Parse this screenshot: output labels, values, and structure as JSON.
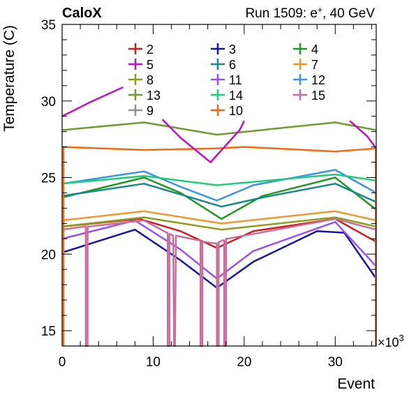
{
  "header": {
    "left_label": "CaloX",
    "right_label_prefix": "Run 1509: e",
    "right_label_sup": "+",
    "right_label_suffix": ", 40 GeV"
  },
  "chart_data": {
    "type": "line",
    "xlabel": "Event",
    "ylabel": "Temperature (C)",
    "x_multiplier_label": "×10",
    "x_multiplier_exp": "3",
    "xlim": [
      0,
      34.5
    ],
    "ylim": [
      14,
      35
    ],
    "x_ticks": [
      0,
      10,
      20,
      30
    ],
    "y_ticks": [
      15,
      20,
      25,
      30,
      35
    ],
    "legend_placement": "top",
    "series": [
      {
        "name": "2",
        "color": "#cc1f1f",
        "x": [
          0,
          8.5,
          13,
          17,
          21,
          30,
          34.5
        ],
        "y": [
          21.8,
          22.3,
          21.5,
          20.4,
          21.5,
          22.3,
          20.8
        ]
      },
      {
        "name": "3",
        "color": "#1414a8",
        "x": [
          0,
          8,
          13,
          17,
          21,
          28,
          31,
          34.5
        ],
        "y": [
          20.1,
          21.6,
          19.6,
          17.8,
          19.5,
          21.5,
          21.4,
          18.4
        ]
      },
      {
        "name": "4",
        "color": "#1e9a1e",
        "x": [
          0,
          9,
          13,
          17.5,
          22,
          30,
          34.5
        ],
        "y": [
          23.7,
          25.0,
          24.0,
          22.3,
          23.8,
          25.0,
          22.9
        ]
      },
      {
        "name": "5",
        "color": "#c012c0",
        "x": [
          0,
          3,
          6.7
        ],
        "y": [
          29.0,
          29.9,
          30.9
        ]
      },
      {
        "name": "6",
        "color": "#17878c",
        "x": [
          0,
          9,
          13,
          17.5,
          22,
          30,
          34.5
        ],
        "y": [
          23.8,
          24.6,
          23.9,
          23.1,
          23.7,
          24.6,
          23.4
        ]
      },
      {
        "name": "7",
        "color": "#f2962e",
        "x": [
          0,
          9,
          17.5,
          30,
          34.5
        ],
        "y": [
          22.2,
          22.8,
          22.0,
          22.8,
          22.2
        ]
      },
      {
        "name": "8",
        "color": "#8f9c1a",
        "x": [
          0,
          9,
          17.5,
          30,
          34.5
        ],
        "y": [
          21.8,
          22.4,
          21.6,
          22.4,
          21.8
        ]
      },
      {
        "name": "11",
        "color": "#9e4fe8",
        "x": [
          0,
          8,
          13,
          17,
          21,
          30,
          34.5
        ],
        "y": [
          21.0,
          22.2,
          20.3,
          18.4,
          20.2,
          22.1,
          19.2
        ]
      },
      {
        "name": "12",
        "color": "#3a94e6",
        "x": [
          0,
          9,
          13,
          17,
          21,
          30,
          34.5
        ],
        "y": [
          24.6,
          25.4,
          24.4,
          23.5,
          24.5,
          25.5,
          24.0
        ]
      },
      {
        "name": "13",
        "color": "#6e9a2e",
        "x": [
          0,
          9,
          17,
          30,
          34.5
        ],
        "y": [
          28.1,
          28.6,
          27.8,
          28.6,
          28.1
        ]
      },
      {
        "name": "14",
        "color": "#1fcc7a",
        "x": [
          0,
          9,
          17,
          30,
          34.5
        ],
        "y": [
          24.6,
          25.1,
          24.5,
          25.2,
          24.8
        ]
      },
      {
        "name": "15",
        "color": "#c86e9c",
        "x": [
          0,
          2.5,
          2.6,
          2.6,
          2.7,
          2.8,
          2.8,
          2.9,
          9,
          11.5,
          11.6,
          11.6,
          11.7,
          11.8,
          11.8,
          11.9,
          12.2,
          12.3,
          12.4,
          12.5,
          15,
          15.1,
          15.2,
          15.2,
          15.3,
          15.4,
          15.4,
          15.5,
          16.8,
          16.9,
          17,
          17,
          17.1,
          17.2,
          17.2,
          17.3,
          17.6,
          17.7,
          17.8,
          17.8,
          17.9,
          18,
          18,
          18.1,
          30,
          34.5
        ],
        "y": [
          21.6,
          21.8,
          21.8,
          14,
          14,
          14,
          21.8,
          21.8,
          22.2,
          21.4,
          21.4,
          14,
          14,
          14,
          21.3,
          21.3,
          21.2,
          14,
          14,
          21.2,
          20.9,
          20.9,
          20.9,
          14,
          14,
          14,
          20.8,
          20.8,
          20.7,
          20.7,
          20.7,
          14,
          14,
          14,
          20.8,
          20.8,
          20.9,
          20.9,
          20.9,
          14,
          14,
          14,
          21.0,
          21.0,
          22.3,
          21.6
        ]
      },
      {
        "name": "9",
        "color": "#909090",
        "x": [],
        "y": []
      },
      {
        "name": "10",
        "color": "#f26a10",
        "x": [
          0,
          9,
          17,
          20,
          30,
          34.5
        ],
        "y": [
          27.0,
          26.8,
          26.9,
          27.0,
          26.7,
          26.9
        ]
      }
    ],
    "extra_segments": [
      {
        "color": "#c012c0",
        "x": [
          11,
          13,
          16.3,
          19.5,
          20
        ],
        "y": [
          28.8,
          27.6,
          26.0,
          28.1,
          28.7
        ]
      },
      {
        "color": "#c012c0",
        "x": [
          31.6,
          33.5,
          34.5
        ],
        "y": [
          28.7,
          27.7,
          26.9
        ]
      },
      {
        "color": "#f26a10",
        "x": [
          0.15,
          0.15
        ],
        "y": [
          14,
          27.0
        ]
      },
      {
        "color": "#f26a10",
        "x": [
          34.45,
          34.45
        ],
        "y": [
          14,
          26.9
        ]
      }
    ]
  }
}
